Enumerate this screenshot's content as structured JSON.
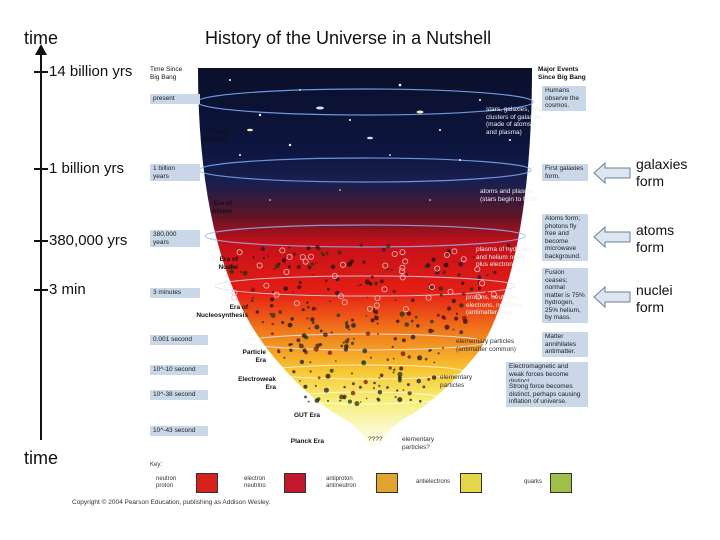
{
  "slide": {
    "title": "History of the Universe in a Nutshell",
    "time_top": "time",
    "time_bottom": "time",
    "timeline_ticks": [
      {
        "label": "14 billion yrs"
      },
      {
        "label": "1 billion yrs"
      },
      {
        "label": "380,000 yrs"
      },
      {
        "label": "3 min"
      }
    ],
    "events": [
      {
        "label_line1": "galaxies",
        "label_line2": "form"
      },
      {
        "label_line1": "atoms",
        "label_line2": "form"
      },
      {
        "label_line1": "nuclei",
        "label_line2": "form"
      }
    ]
  },
  "figure": {
    "header_left_1": "Time Since",
    "header_left_2": "Big Bang",
    "header_right_1": "Major Events",
    "header_right_2": "Since Big Bang",
    "time_boxes": [
      {
        "line1": "present",
        "line2": ""
      },
      {
        "line1": "1 billion",
        "line2": "years"
      },
      {
        "line1": "380,000",
        "line2": "years"
      },
      {
        "line1": "3 minutes",
        "line2": ""
      },
      {
        "line1": "0.001 second",
        "line2": ""
      },
      {
        "line1": "10^-10 second",
        "line2": ""
      },
      {
        "line1": "10^-38 second",
        "line2": ""
      },
      {
        "line1": "10^-43 second",
        "line2": ""
      }
    ],
    "eras": [
      {
        "line1": "Era of",
        "line2": "Galaxies"
      },
      {
        "line1": "Era of",
        "line2": "Atoms"
      },
      {
        "line1": "Era of",
        "line2": "Nuclei"
      },
      {
        "line1": "Era of",
        "line2": "Nucleosynthesis"
      },
      {
        "line1": "Particle",
        "line2": "Era"
      },
      {
        "line1": "Electroweak",
        "line2": "Era"
      },
      {
        "line1": "GUT Era",
        "line2": ""
      },
      {
        "line1": "Planck Era",
        "line2": ""
      }
    ],
    "event_boxes": [
      {
        "text": "Humans observe the cosmos."
      },
      {
        "text": "First galaxies form."
      },
      {
        "text": "Atoms form; photons fly free and become microwave background."
      },
      {
        "text": "Fusion ceases; normal matter is 75% hydrogen, 25% helium, by mass."
      },
      {
        "text": "Matter annihilates antimatter."
      },
      {
        "text": "Electromagnetic and weak forces become distinct."
      },
      {
        "text": "Strong force becomes distinct, perhaps causing inflation of universe."
      }
    ],
    "descriptions": [
      {
        "text": "stars, galaxies, and clusters of galaxies (made of atoms and plasma)"
      },
      {
        "text": "atoms and plasma (stars begin to form)"
      },
      {
        "text": "plasma of hydrogen and helium nuclei plus electrons"
      },
      {
        "text": "protons, neutrons, electrons, neutrinos (antimatter rare)"
      },
      {
        "text": "elementary particles (antimatter common)"
      },
      {
        "text": "elementary particles"
      },
      {
        "text": "elementary particles?"
      },
      {
        "text": "????"
      }
    ],
    "key": {
      "title": "Key:",
      "items": [
        {
          "line1": "neutron",
          "line2": "proton"
        },
        {
          "line1": "electron",
          "line2": "neutrino"
        },
        {
          "line1": "antiproton",
          "line2": "antineutron"
        },
        {
          "line1": "antielectrons",
          "line2": ""
        },
        {
          "line1": "quarks",
          "line2": ""
        }
      ]
    },
    "copyright": "Copyright © 2004 Pearson Education, publishing as Addison Wesley."
  },
  "colors": {
    "accent_box": "#c9d7e8",
    "arrow_fill": "#dde6f0",
    "arrow_stroke": "#6b7f99"
  }
}
